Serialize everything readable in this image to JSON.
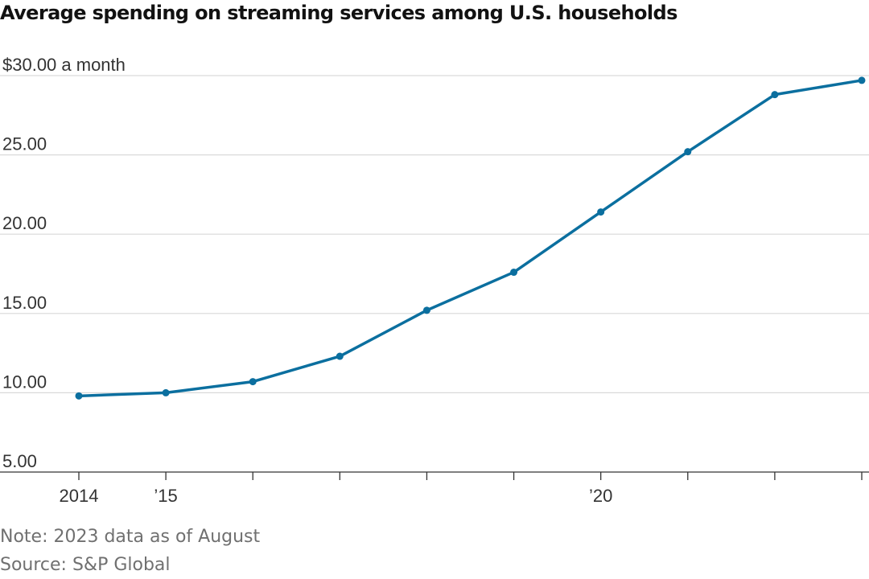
{
  "chart_data": {
    "type": "line",
    "title": "Average spending on streaming services among U.S. households",
    "y_unit_label": "$30.00 a month",
    "x": [
      2014,
      2015,
      2016,
      2017,
      2018,
      2019,
      2020,
      2021,
      2022,
      2023
    ],
    "x_tick_labels": [
      {
        "x": 2014,
        "label": "2014"
      },
      {
        "x": 2015,
        "label": "’15"
      },
      {
        "x": 2020,
        "label": "’20"
      }
    ],
    "y_ticks": [
      {
        "value": 5,
        "label": "5.00"
      },
      {
        "value": 10,
        "label": "10.00"
      },
      {
        "value": 15,
        "label": "15.00"
      },
      {
        "value": 20,
        "label": "20.00"
      },
      {
        "value": 25,
        "label": "25.00"
      },
      {
        "value": 30,
        "label": "$30.00 a month"
      }
    ],
    "ylim": [
      5,
      30
    ],
    "xlim": [
      2014,
      2023
    ],
    "series": [
      {
        "values": [
          9.8,
          10.0,
          10.7,
          12.3,
          15.2,
          17.6,
          21.4,
          25.2,
          28.8,
          29.7
        ]
      }
    ],
    "grid": "horizontal",
    "colors": {
      "line": "#0b6f9f",
      "grid": "#d9d9d9",
      "axis": "#333333"
    },
    "note": "Note: 2023 data as of August",
    "source": "Source: S&P Global"
  }
}
